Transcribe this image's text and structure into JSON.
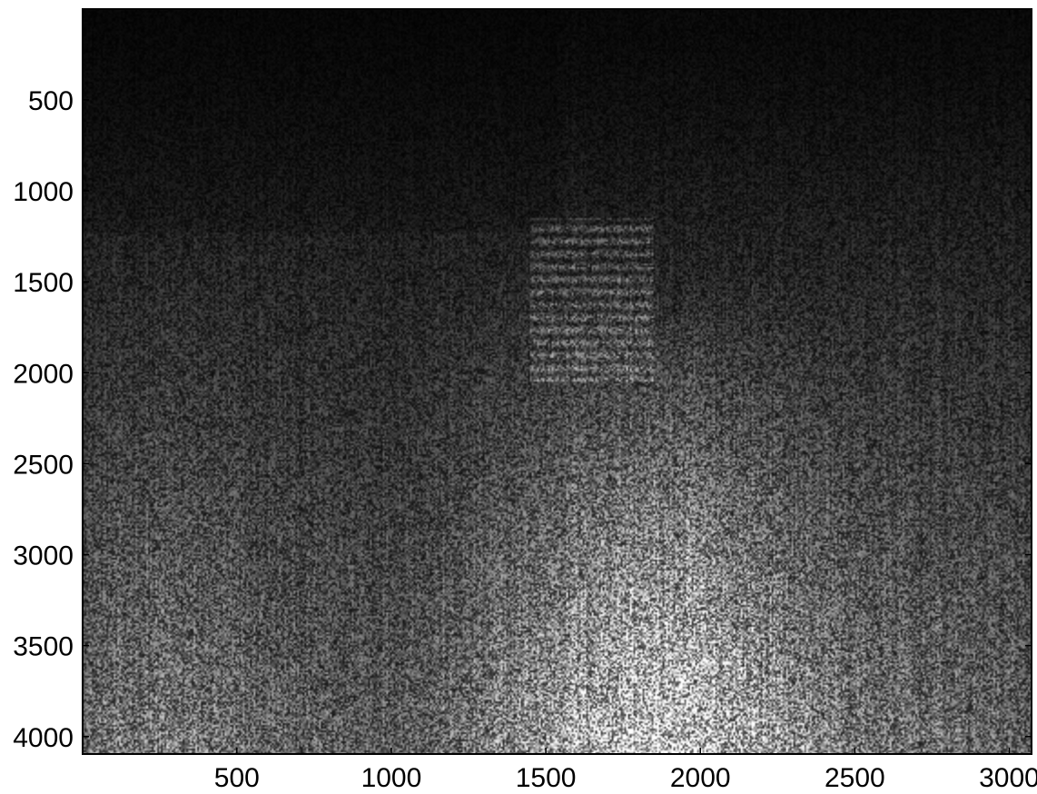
{
  "chart_data": {
    "type": "heatmap",
    "title": "",
    "xlabel": "",
    "ylabel": "",
    "colormap": "gray",
    "xlim": [
      1,
      3072
    ],
    "ylim": [
      1,
      4096
    ],
    "y_reversed": true,
    "x_ticks": [
      500,
      1000,
      1500,
      2000,
      2500,
      3000
    ],
    "x_tick_labels": [
      "500",
      "1000",
      "1500",
      "2000",
      "2500",
      "3000"
    ],
    "y_ticks": [
      500,
      1000,
      1500,
      2000,
      2500,
      3000,
      3500,
      4000
    ],
    "y_tick_labels": [
      "500",
      "1000",
      "1500",
      "2000",
      "2500",
      "3000",
      "3500",
      "4000"
    ],
    "grid": false,
    "legend": "none",
    "colors": {
      "frame": "#000000",
      "background": "#ffffff"
    }
  }
}
